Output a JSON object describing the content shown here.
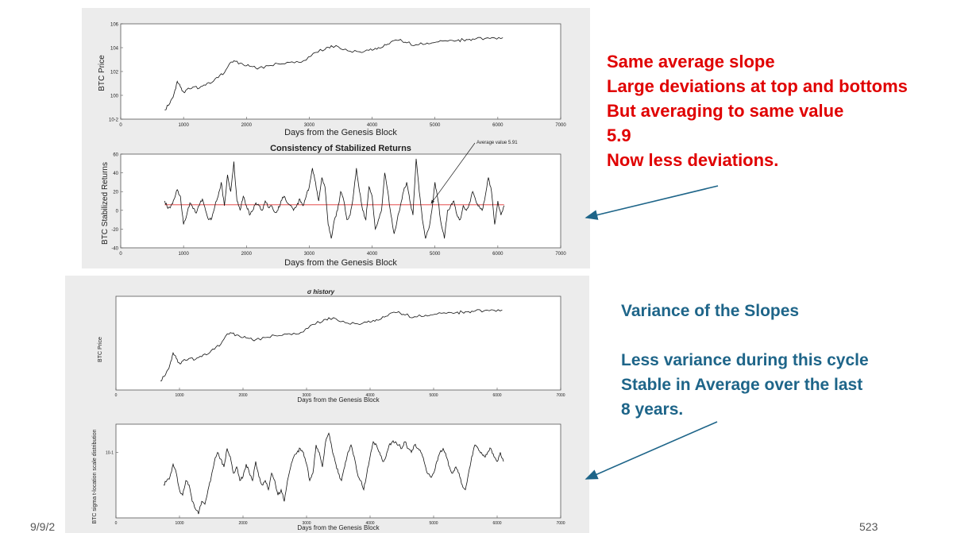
{
  "colors": {
    "red_text": "#e00000",
    "blue_text": "#1e6589",
    "arrow": "#1e6589",
    "mean_line": "#e03030"
  },
  "annotations": {
    "top_block": [
      "Same average slope",
      "Large deviations at top and bottoms",
      "But averaging to same value",
      "5.9",
      "Now less deviations."
    ],
    "bottom_block": [
      "Variance of the Slopes",
      "",
      "Less variance during this cycle",
      "Stable in Average over the last",
      "8 years."
    ]
  },
  "footer": {
    "date": "9/9/2",
    "page_number": "523"
  },
  "chart_data": [
    {
      "id": "price_top",
      "type": "line",
      "title": "",
      "xlabel": "Days from the Genesis Block",
      "ylabel": "BTC Price",
      "xlim": [
        0,
        7000
      ],
      "ylim": [
        0.01,
        1000000
      ],
      "yscale": "log",
      "xticks": [
        "0",
        "1000",
        "2000",
        "3000",
        "4000",
        "5000",
        "6000",
        "7000"
      ],
      "yticks": [
        "10^-2",
        "10^0",
        "10^2",
        "10^4",
        "10^6"
      ],
      "grid": false,
      "series": [
        {
          "x": [
            700,
            780,
            850,
            900,
            950,
            1000,
            1050,
            1150,
            1250,
            1350,
            1450,
            1550,
            1650,
            1750,
            1800,
            1900,
            2000,
            2100,
            2200,
            2350,
            2500,
            2650,
            2800,
            2950,
            3100,
            3250,
            3350,
            3500,
            3650,
            3800,
            3950,
            4050,
            4150,
            4250,
            4350,
            4450,
            4550,
            4700,
            4850,
            4950,
            5050,
            5200,
            5350,
            5450,
            5550,
            5650,
            5800,
            5950,
            6080
          ],
          "y": [
            0.06,
            0.2,
            1.5,
            15,
            5,
            2,
            3,
            5,
            4,
            7,
            12,
            30,
            80,
            600,
            800,
            500,
            300,
            250,
            200,
            300,
            450,
            600,
            700,
            900,
            4000,
            7000,
            15000,
            8000,
            5000,
            4500,
            6000,
            9000,
            10000,
            20000,
            40000,
            50000,
            25000,
            18000,
            20000,
            25000,
            30000,
            35000,
            40000,
            45000,
            50000,
            55000,
            60000,
            65000,
            68000
          ]
        }
      ]
    },
    {
      "id": "stabilized_returns",
      "type": "line",
      "title": "Consistency of Stabilized Returns",
      "xlabel": "Days from the Genesis Block",
      "ylabel": "BTC Stabilized Returns",
      "xlim": [
        0,
        7000
      ],
      "ylim": [
        -40,
        60
      ],
      "xticks": [
        "0",
        "1000",
        "2000",
        "3000",
        "4000",
        "5000",
        "6000",
        "7000"
      ],
      "yticks": [
        "-40",
        "-20",
        "0",
        "20",
        "40",
        "60"
      ],
      "grid": false,
      "mean_value": 5.91,
      "annotation": "Average value 5.91",
      "series": [
        {
          "x": [
            700,
            750,
            800,
            850,
            900,
            950,
            1000,
            1050,
            1100,
            1150,
            1200,
            1250,
            1300,
            1350,
            1400,
            1450,
            1500,
            1550,
            1600,
            1650,
            1700,
            1750,
            1800,
            1850,
            1900,
            1950,
            2000,
            2050,
            2100,
            2150,
            2200,
            2250,
            2300,
            2350,
            2400,
            2450,
            2500,
            2550,
            2600,
            2650,
            2700,
            2750,
            2800,
            2850,
            2900,
            2950,
            3000,
            3050,
            3100,
            3150,
            3200,
            3250,
            3300,
            3350,
            3400,
            3450,
            3500,
            3550,
            3600,
            3650,
            3700,
            3750,
            3800,
            3850,
            3900,
            3950,
            4000,
            4050,
            4100,
            4150,
            4200,
            4250,
            4300,
            4350,
            4400,
            4450,
            4500,
            4550,
            4600,
            4650,
            4700,
            4750,
            4800,
            4850,
            4900,
            4950,
            5000,
            5050,
            5100,
            5150,
            5200,
            5250,
            5300,
            5350,
            5400,
            5450,
            5500,
            5550,
            5600,
            5650,
            5700,
            5750,
            5800,
            5850,
            5900,
            5950,
            6000,
            6050,
            6100
          ],
          "y": [
            10,
            2,
            5,
            12,
            22,
            15,
            -15,
            -5,
            8,
            2,
            -3,
            5,
            12,
            0,
            -10,
            -8,
            5,
            15,
            30,
            5,
            38,
            20,
            52,
            10,
            0,
            15,
            5,
            -5,
            0,
            8,
            5,
            0,
            10,
            3,
            5,
            -2,
            0,
            10,
            15,
            8,
            5,
            0,
            5,
            12,
            5,
            15,
            25,
            45,
            30,
            10,
            35,
            25,
            -15,
            -30,
            -10,
            0,
            20,
            10,
            -10,
            -5,
            15,
            45,
            20,
            0,
            -10,
            25,
            15,
            -20,
            -10,
            0,
            40,
            20,
            -5,
            -25,
            -10,
            5,
            20,
            30,
            10,
            -5,
            55,
            20,
            -10,
            -30,
            -20,
            0,
            30,
            10,
            -15,
            -30,
            0,
            5,
            10,
            -5,
            -10,
            5,
            0,
            8,
            20,
            10,
            5,
            0,
            15,
            35,
            20,
            -15,
            10,
            -5,
            5
          ]
        }
      ]
    },
    {
      "id": "price_bottom",
      "type": "line",
      "title": "σ history",
      "xlabel": "Days from the Genesis Block",
      "ylabel": "BTC Price",
      "xlim": [
        0,
        7000
      ],
      "ylim": [
        0.01,
        1000000
      ],
      "yscale": "log",
      "xticks": [
        "0",
        "1000",
        "2000",
        "3000",
        "4000",
        "5000",
        "6000",
        "7000"
      ],
      "grid": false,
      "series": [
        {
          "x": [
            700,
            780,
            850,
            900,
            950,
            1000,
            1050,
            1150,
            1250,
            1350,
            1450,
            1550,
            1650,
            1750,
            1800,
            1900,
            2000,
            2100,
            2200,
            2350,
            2500,
            2650,
            2800,
            2950,
            3100,
            3250,
            3350,
            3500,
            3650,
            3800,
            3950,
            4050,
            4150,
            4250,
            4350,
            4450,
            4550,
            4700,
            4850,
            4950,
            5050,
            5200,
            5350,
            5450,
            5550,
            5650,
            5800,
            5950,
            6080
          ],
          "y": [
            0.06,
            0.2,
            1.5,
            15,
            5,
            2,
            3,
            5,
            4,
            7,
            12,
            30,
            80,
            600,
            800,
            500,
            300,
            250,
            200,
            300,
            450,
            600,
            700,
            900,
            4000,
            7000,
            15000,
            8000,
            5000,
            4500,
            6000,
            9000,
            10000,
            20000,
            40000,
            50000,
            25000,
            18000,
            20000,
            25000,
            30000,
            35000,
            40000,
            45000,
            50000,
            55000,
            60000,
            65000,
            68000
          ]
        }
      ]
    },
    {
      "id": "sigma_history",
      "type": "line",
      "title": "",
      "xlabel": "Days from the Genesis Block",
      "ylabel": "BTC sigma t-location scale distribution",
      "xlim": [
        0,
        7000
      ],
      "ylim": [
        0.02,
        0.2
      ],
      "yscale": "log",
      "xticks": [
        "0",
        "1000",
        "2000",
        "3000",
        "4000",
        "5000",
        "6000",
        "7000"
      ],
      "yticks": [
        "10^-1"
      ],
      "grid": false,
      "series": [
        {
          "x": [
            750,
            800,
            850,
            900,
            950,
            1000,
            1050,
            1100,
            1150,
            1200,
            1250,
            1300,
            1350,
            1400,
            1450,
            1500,
            1550,
            1600,
            1650,
            1700,
            1750,
            1800,
            1850,
            1900,
            1950,
            2000,
            2050,
            2100,
            2150,
            2200,
            2250,
            2300,
            2350,
            2400,
            2450,
            2500,
            2550,
            2600,
            2650,
            2700,
            2750,
            2800,
            2850,
            2900,
            2950,
            3000,
            3050,
            3100,
            3150,
            3200,
            3250,
            3300,
            3350,
            3400,
            3450,
            3500,
            3550,
            3600,
            3650,
            3700,
            3750,
            3800,
            3850,
            3900,
            3950,
            4000,
            4050,
            4100,
            4150,
            4200,
            4250,
            4300,
            4350,
            4400,
            4450,
            4500,
            4550,
            4600,
            4650,
            4700,
            4750,
            4800,
            4850,
            4900,
            4950,
            5000,
            5050,
            5100,
            5150,
            5200,
            5250,
            5300,
            5350,
            5400,
            5450,
            5500,
            5550,
            5600,
            5650,
            5700,
            5750,
            5800,
            5850,
            5900,
            5950,
            6000,
            6050,
            6100
          ],
          "y": [
            0.045,
            0.05,
            0.055,
            0.075,
            0.06,
            0.04,
            0.035,
            0.05,
            0.045,
            0.03,
            0.025,
            0.022,
            0.03,
            0.028,
            0.04,
            0.055,
            0.08,
            0.1,
            0.085,
            0.07,
            0.11,
            0.09,
            0.06,
            0.07,
            0.05,
            0.055,
            0.075,
            0.06,
            0.05,
            0.08,
            0.055,
            0.045,
            0.05,
            0.04,
            0.06,
            0.05,
            0.035,
            0.04,
            0.03,
            0.05,
            0.07,
            0.09,
            0.1,
            0.11,
            0.1,
            0.075,
            0.05,
            0.06,
            0.12,
            0.1,
            0.07,
            0.13,
            0.16,
            0.11,
            0.08,
            0.06,
            0.05,
            0.07,
            0.1,
            0.12,
            0.09,
            0.06,
            0.05,
            0.04,
            0.06,
            0.09,
            0.13,
            0.12,
            0.1,
            0.08,
            0.09,
            0.12,
            0.13,
            0.13,
            0.12,
            0.11,
            0.13,
            0.11,
            0.1,
            0.12,
            0.11,
            0.1,
            0.08,
            0.06,
            0.055,
            0.06,
            0.08,
            0.1,
            0.11,
            0.09,
            0.07,
            0.06,
            0.07,
            0.06,
            0.045,
            0.04,
            0.06,
            0.09,
            0.12,
            0.11,
            0.1,
            0.09,
            0.1,
            0.11,
            0.09,
            0.08,
            0.1,
            0.08
          ]
        }
      ]
    }
  ]
}
